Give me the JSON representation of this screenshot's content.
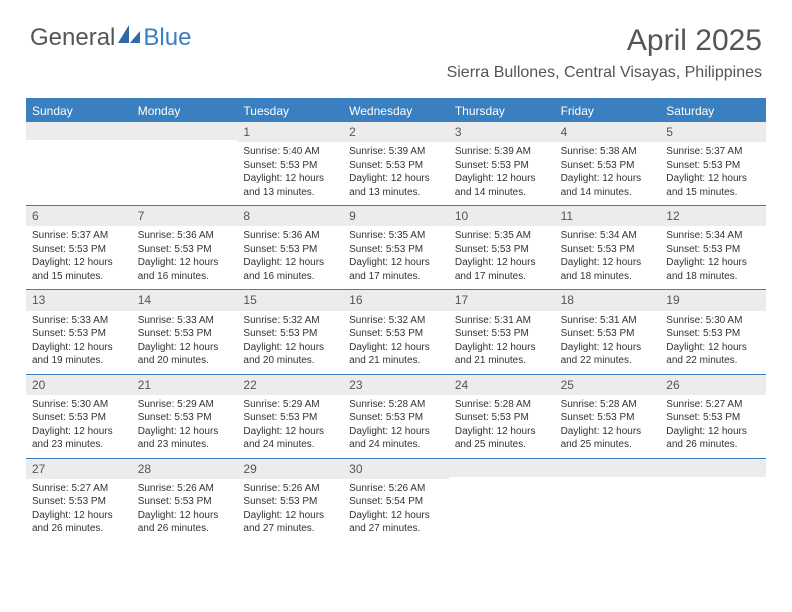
{
  "logo": {
    "text1": "General",
    "text2": "Blue"
  },
  "title": "April 2025",
  "location": "Sierra Bullones, Central Visayas, Philippines",
  "colors": {
    "accent": "#3a7fbf",
    "header_bg": "#3a7fbf",
    "daynum_bg": "#ececec",
    "text": "#333333",
    "muted": "#555555",
    "bg": "#ffffff"
  },
  "days_of_week": [
    "Sunday",
    "Monday",
    "Tuesday",
    "Wednesday",
    "Thursday",
    "Friday",
    "Saturday"
  ],
  "weeks": [
    [
      null,
      null,
      {
        "n": "1",
        "sr": "5:40 AM",
        "ss": "5:53 PM",
        "dl": "12 hours and 13 minutes."
      },
      {
        "n": "2",
        "sr": "5:39 AM",
        "ss": "5:53 PM",
        "dl": "12 hours and 13 minutes."
      },
      {
        "n": "3",
        "sr": "5:39 AM",
        "ss": "5:53 PM",
        "dl": "12 hours and 14 minutes."
      },
      {
        "n": "4",
        "sr": "5:38 AM",
        "ss": "5:53 PM",
        "dl": "12 hours and 14 minutes."
      },
      {
        "n": "5",
        "sr": "5:37 AM",
        "ss": "5:53 PM",
        "dl": "12 hours and 15 minutes."
      }
    ],
    [
      {
        "n": "6",
        "sr": "5:37 AM",
        "ss": "5:53 PM",
        "dl": "12 hours and 15 minutes."
      },
      {
        "n": "7",
        "sr": "5:36 AM",
        "ss": "5:53 PM",
        "dl": "12 hours and 16 minutes."
      },
      {
        "n": "8",
        "sr": "5:36 AM",
        "ss": "5:53 PM",
        "dl": "12 hours and 16 minutes."
      },
      {
        "n": "9",
        "sr": "5:35 AM",
        "ss": "5:53 PM",
        "dl": "12 hours and 17 minutes."
      },
      {
        "n": "10",
        "sr": "5:35 AM",
        "ss": "5:53 PM",
        "dl": "12 hours and 17 minutes."
      },
      {
        "n": "11",
        "sr": "5:34 AM",
        "ss": "5:53 PM",
        "dl": "12 hours and 18 minutes."
      },
      {
        "n": "12",
        "sr": "5:34 AM",
        "ss": "5:53 PM",
        "dl": "12 hours and 18 minutes."
      }
    ],
    [
      {
        "n": "13",
        "sr": "5:33 AM",
        "ss": "5:53 PM",
        "dl": "12 hours and 19 minutes."
      },
      {
        "n": "14",
        "sr": "5:33 AM",
        "ss": "5:53 PM",
        "dl": "12 hours and 20 minutes."
      },
      {
        "n": "15",
        "sr": "5:32 AM",
        "ss": "5:53 PM",
        "dl": "12 hours and 20 minutes."
      },
      {
        "n": "16",
        "sr": "5:32 AM",
        "ss": "5:53 PM",
        "dl": "12 hours and 21 minutes."
      },
      {
        "n": "17",
        "sr": "5:31 AM",
        "ss": "5:53 PM",
        "dl": "12 hours and 21 minutes."
      },
      {
        "n": "18",
        "sr": "5:31 AM",
        "ss": "5:53 PM",
        "dl": "12 hours and 22 minutes."
      },
      {
        "n": "19",
        "sr": "5:30 AM",
        "ss": "5:53 PM",
        "dl": "12 hours and 22 minutes."
      }
    ],
    [
      {
        "n": "20",
        "sr": "5:30 AM",
        "ss": "5:53 PM",
        "dl": "12 hours and 23 minutes."
      },
      {
        "n": "21",
        "sr": "5:29 AM",
        "ss": "5:53 PM",
        "dl": "12 hours and 23 minutes."
      },
      {
        "n": "22",
        "sr": "5:29 AM",
        "ss": "5:53 PM",
        "dl": "12 hours and 24 minutes."
      },
      {
        "n": "23",
        "sr": "5:28 AM",
        "ss": "5:53 PM",
        "dl": "12 hours and 24 minutes."
      },
      {
        "n": "24",
        "sr": "5:28 AM",
        "ss": "5:53 PM",
        "dl": "12 hours and 25 minutes."
      },
      {
        "n": "25",
        "sr": "5:28 AM",
        "ss": "5:53 PM",
        "dl": "12 hours and 25 minutes."
      },
      {
        "n": "26",
        "sr": "5:27 AM",
        "ss": "5:53 PM",
        "dl": "12 hours and 26 minutes."
      }
    ],
    [
      {
        "n": "27",
        "sr": "5:27 AM",
        "ss": "5:53 PM",
        "dl": "12 hours and 26 minutes."
      },
      {
        "n": "28",
        "sr": "5:26 AM",
        "ss": "5:53 PM",
        "dl": "12 hours and 26 minutes."
      },
      {
        "n": "29",
        "sr": "5:26 AM",
        "ss": "5:53 PM",
        "dl": "12 hours and 27 minutes."
      },
      {
        "n": "30",
        "sr": "5:26 AM",
        "ss": "5:54 PM",
        "dl": "12 hours and 27 minutes."
      },
      null,
      null,
      null
    ]
  ],
  "labels": {
    "sunrise": "Sunrise:",
    "sunset": "Sunset:",
    "daylight": "Daylight:"
  }
}
